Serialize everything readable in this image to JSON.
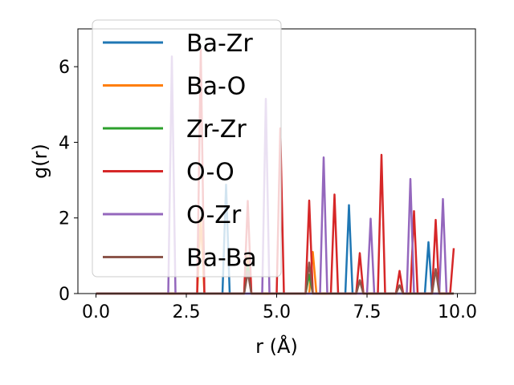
{
  "chart_data": {
    "type": "line",
    "xlabel": "r (Å)",
    "ylabel": "g(r)",
    "xlim": [
      -0.5,
      10.5
    ],
    "ylim": [
      0,
      7
    ],
    "xticks": [
      0.0,
      2.5,
      5.0,
      7.5,
      10.0
    ],
    "xtick_labels": [
      "0.0",
      "2.5",
      "5.0",
      "7.5",
      "10.0"
    ],
    "yticks": [
      0,
      2,
      4,
      6
    ],
    "ytick_labels": [
      "0",
      "2",
      "4",
      "6"
    ],
    "legend_position": "upper-left",
    "series": [
      {
        "name": "Ba-Zr",
        "color": "#1f77b4",
        "x": [
          0,
          3.5,
          3.6,
          3.7,
          6.9,
          7.0,
          7.1,
          9.1,
          9.2,
          9.3,
          9.9
        ],
        "y": [
          0,
          0,
          2.88,
          0,
          0,
          2.34,
          0,
          0,
          1.36,
          0,
          0
        ]
      },
      {
        "name": "Ba-O",
        "color": "#ff7f0e",
        "x": [
          0,
          2.8,
          2.9,
          3.0,
          4.1,
          4.2,
          4.3,
          5.9,
          6.0,
          6.1,
          9.9
        ],
        "y": [
          0,
          0,
          2.0,
          0,
          0,
          1.0,
          0,
          0,
          1.1,
          0,
          0
        ]
      },
      {
        "name": "Zr-Zr",
        "color": "#2ca02c",
        "x": [
          0,
          4.1,
          4.2,
          4.3,
          5.8,
          5.9,
          6.0,
          7.2,
          7.3,
          7.4,
          9.9
        ],
        "y": [
          0,
          0,
          0.75,
          0,
          0,
          0.5,
          0,
          0,
          0.35,
          0,
          0
        ]
      },
      {
        "name": "O-O",
        "color": "#d62728",
        "x": [
          0,
          2.8,
          2.9,
          3.0,
          4.1,
          4.2,
          4.3,
          5.0,
          5.1,
          5.2,
          5.8,
          5.9,
          6.0,
          6.5,
          6.6,
          6.7,
          7.2,
          7.3,
          7.4,
          7.8,
          7.9,
          8.0,
          8.3,
          8.4,
          8.5,
          8.7,
          8.8,
          8.9,
          9.3,
          9.4,
          9.5,
          9.8,
          9.9
        ],
        "y": [
          0,
          0,
          6.45,
          0,
          0,
          2.45,
          0,
          0,
          4.37,
          0,
          0,
          2.46,
          0,
          0,
          2.62,
          0,
          0,
          1.07,
          0,
          0,
          3.67,
          0,
          0,
          0.6,
          0,
          0,
          2.18,
          0,
          0,
          1.95,
          0,
          0,
          1.2
        ]
      },
      {
        "name": "O-Zr",
        "color": "#9467bd",
        "x": [
          0,
          2.0,
          2.1,
          2.2,
          4.6,
          4.7,
          4.8,
          6.2,
          6.3,
          6.4,
          7.5,
          7.6,
          7.7,
          8.6,
          8.7,
          8.8,
          9.5,
          9.6,
          9.7,
          9.9
        ],
        "y": [
          0,
          0,
          6.27,
          0,
          0,
          5.15,
          0,
          0,
          3.6,
          0,
          0,
          1.98,
          0,
          0,
          3.03,
          0,
          0,
          2.5,
          0,
          0
        ]
      },
      {
        "name": "Ba-Ba",
        "color": "#8c564b",
        "x": [
          0,
          4.1,
          4.2,
          4.3,
          5.8,
          5.9,
          6.0,
          7.2,
          7.3,
          7.4,
          8.3,
          8.4,
          8.5,
          9.3,
          9.4,
          9.5,
          9.9
        ],
        "y": [
          0,
          0,
          0.58,
          0,
          0,
          0.82,
          0,
          0,
          0.35,
          0,
          0,
          0.22,
          0,
          0,
          0.65,
          0,
          0
        ]
      }
    ]
  }
}
